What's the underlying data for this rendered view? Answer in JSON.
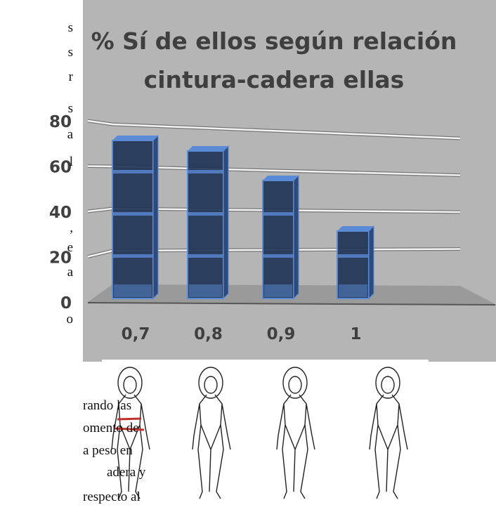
{
  "chart_data": {
    "type": "bar3d",
    "title": [
      "% Sí de ellos según relación",
      "cintura-cadera ellas"
    ],
    "categories": [
      "0,7",
      "0,8",
      "0,9",
      "1"
    ],
    "values": [
      75,
      70,
      56,
      32
    ],
    "color": "#1f3456",
    "edge_color": "#5b8ad6",
    "ylim": [
      0,
      80
    ],
    "yticks": [
      0,
      20,
      40,
      60,
      80
    ],
    "grid": true
  },
  "document": {
    "left_column": [
      "s",
      "s",
      "r",
      "s",
      "a",
      "l",
      ",",
      "e",
      "a",
      "o"
    ],
    "bottom_lines": [
      "rando las",
      "omento de",
      "a peso en",
      "adera y",
      "respecto al"
    ]
  }
}
